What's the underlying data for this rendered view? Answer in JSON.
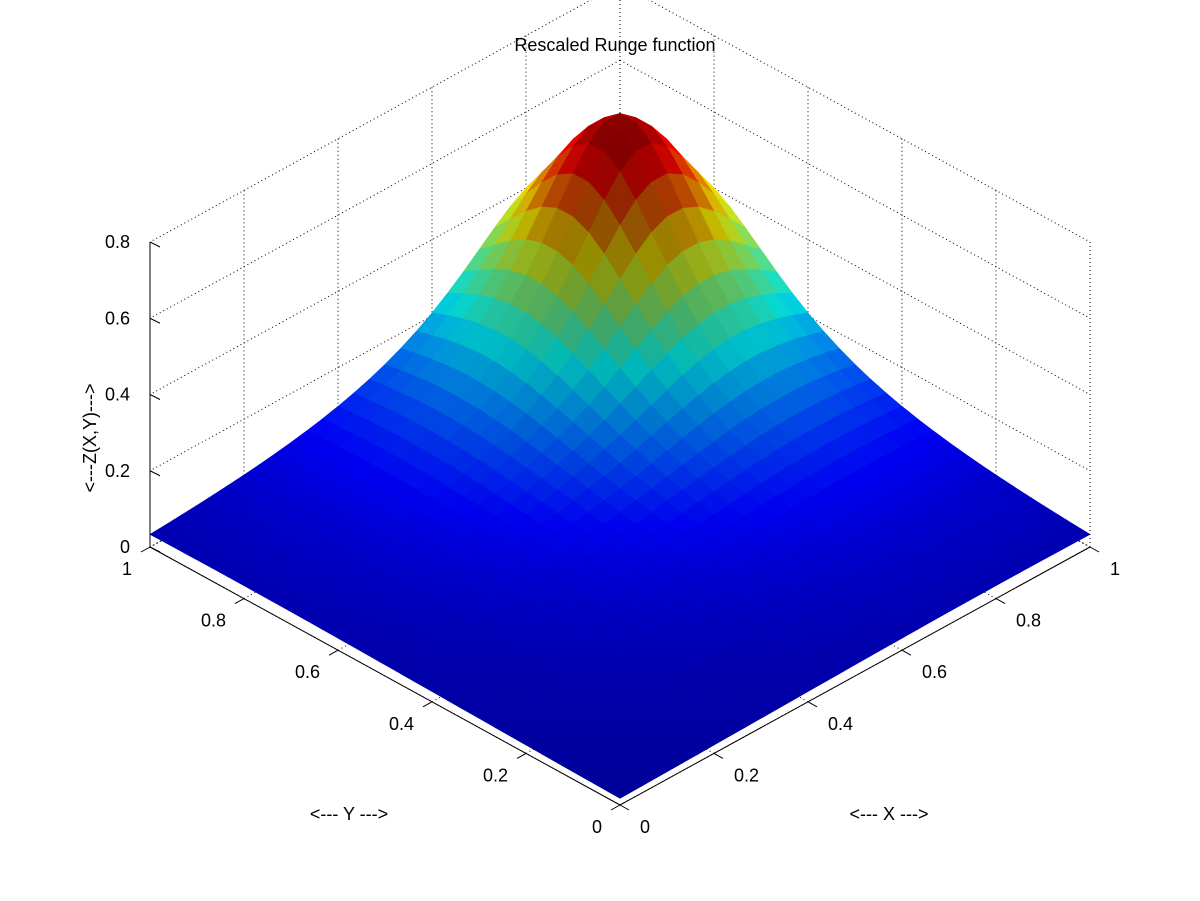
{
  "chart_data": {
    "type": "surface",
    "title": "Rescaled Runge function",
    "xlabel": "<--- X --->",
    "ylabel": "<--- Y --->",
    "zlabel": "<---Z(X,Y)--->",
    "xlim": [
      0,
      1
    ],
    "ylim": [
      0,
      1
    ],
    "zlim": [
      0,
      0.8
    ],
    "x_ticks": [
      "0",
      "0.2",
      "0.4",
      "0.6",
      "0.8",
      "1"
    ],
    "y_ticks": [
      "0",
      "0.2",
      "0.4",
      "0.6",
      "0.8",
      "1"
    ],
    "z_ticks": [
      "0",
      "0.2",
      "0.4",
      "0.6",
      "0.8"
    ],
    "grid": true,
    "colormap": "jet",
    "peak": {
      "x": 0.85,
      "y": 0.85,
      "z": 0.65
    },
    "surface_function": "z = 0.65 / (1 + 25*((x-0.85)^2 + (y-0.85)^2))"
  }
}
